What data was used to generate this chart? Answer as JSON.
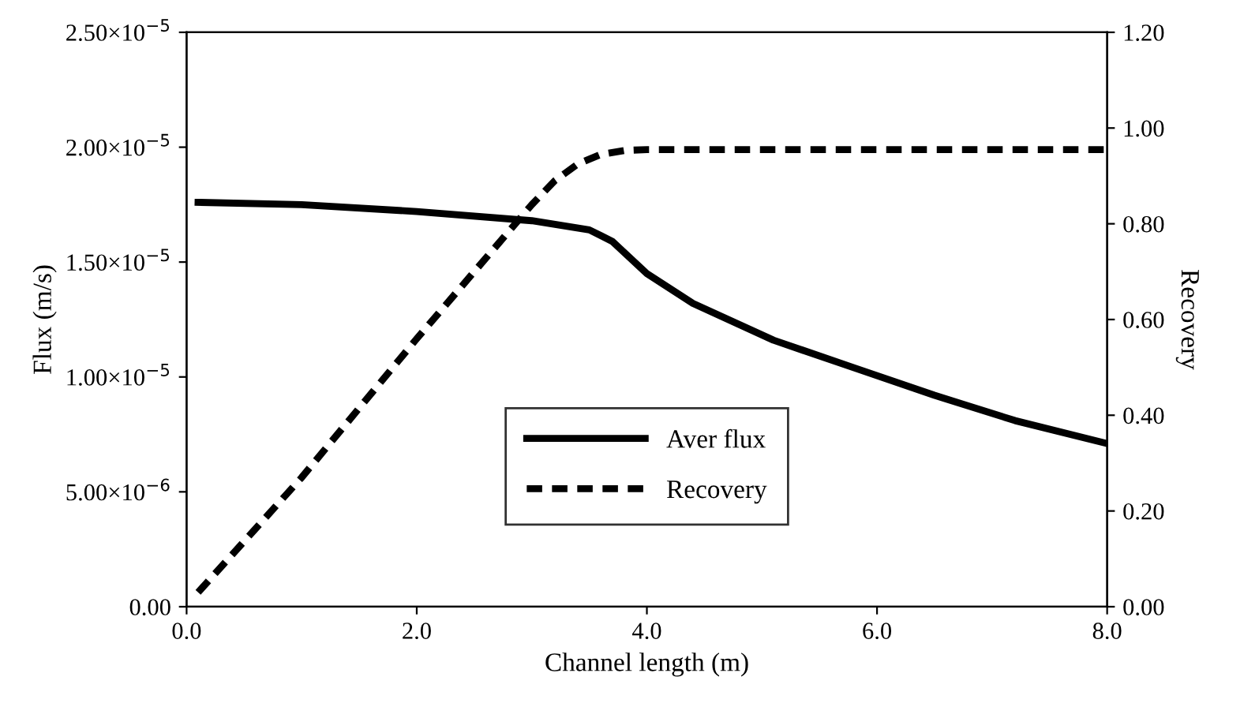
{
  "chart_data": {
    "type": "line",
    "xlabel": "Channel length (m)",
    "ylabel": "Flux (m/s)",
    "y2label": "Recovery",
    "xlim": [
      0,
      8
    ],
    "xticks": [
      {
        "value": 0,
        "label": "0.0"
      },
      {
        "value": 2,
        "label": "2.0"
      },
      {
        "value": 4,
        "label": "4.0"
      },
      {
        "value": 6,
        "label": "6.0"
      },
      {
        "value": 8,
        "label": "8.0"
      }
    ],
    "ylim": [
      0,
      2.5e-05
    ],
    "yticks": [
      {
        "value": 0,
        "label": "0.00"
      },
      {
        "value": 5e-06,
        "label": "5.00×10$^{−6}$"
      },
      {
        "value": 1e-05,
        "label": "1.00×10$^{−5}$"
      },
      {
        "value": 1.5e-05,
        "label": "1.50×10$^{−5}$"
      },
      {
        "value": 2e-05,
        "label": "2.00×10$^{−5}$"
      },
      {
        "value": 2.5e-05,
        "label": "2.50×10$^{−5}$"
      }
    ],
    "y2lim": [
      0,
      1.2
    ],
    "y2ticks": [
      {
        "value": 0,
        "label": "0.00"
      },
      {
        "value": 0.2,
        "label": "0.20"
      },
      {
        "value": 0.4,
        "label": "0.40"
      },
      {
        "value": 0.6,
        "label": "0.60"
      },
      {
        "value": 0.8,
        "label": "0.80"
      },
      {
        "value": 1.0,
        "label": "1.00"
      },
      {
        "value": 1.2,
        "label": "1.20"
      }
    ],
    "grid": false,
    "legend": "bottom",
    "marker": "none",
    "series": [
      {
        "name": "Aver flux",
        "color": "#000000",
        "line_style": "solid",
        "x": [
          0.1,
          1.0,
          2.0,
          3.0,
          3.5,
          3.7,
          4.0,
          4.4,
          5.1,
          5.8,
          6.5,
          7.2,
          8.0
        ],
        "values": [
          1.76e-05,
          1.75e-05,
          1.72e-05,
          1.68e-05,
          1.64e-05,
          1.59e-05,
          1.45e-05,
          1.32e-05,
          1.16e-05,
          1.04e-05,
          9.2e-06,
          8.1e-06,
          7.1e-06
        ]
      },
      {
        "name": "Recovery",
        "color": "#000000",
        "line_style": "dashed",
        "axis": "y2",
        "x": [
          0.1,
          1.0,
          2.0,
          3.0,
          3.2,
          3.4,
          3.6,
          3.8,
          4.0,
          8.0
        ],
        "values": [
          0.03,
          0.27,
          0.56,
          0.84,
          0.89,
          0.925,
          0.945,
          0.953,
          0.955,
          0.955
        ]
      }
    ]
  }
}
